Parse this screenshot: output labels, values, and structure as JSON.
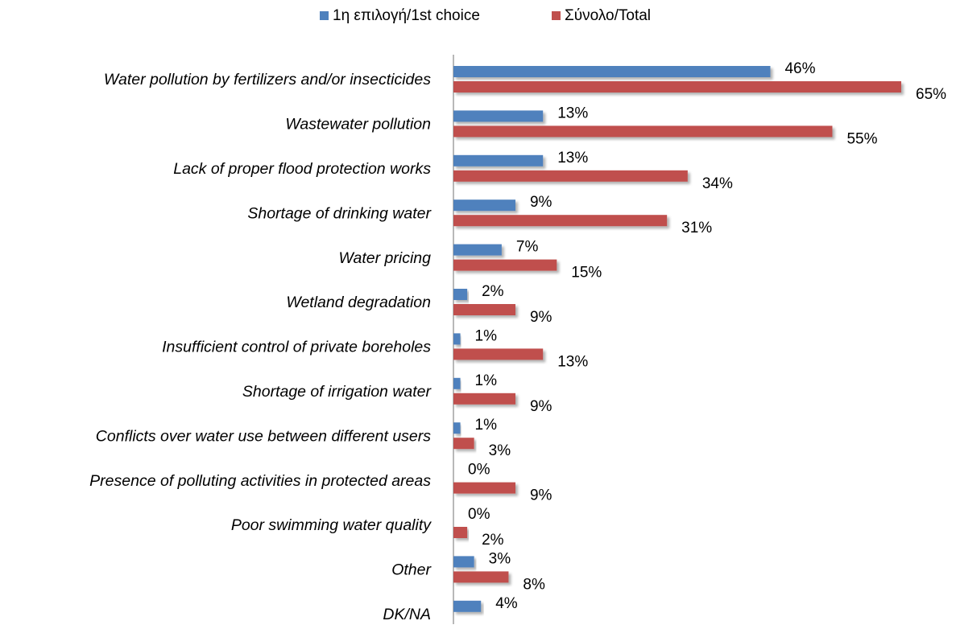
{
  "chart_data": {
    "type": "bar",
    "orientation": "horizontal",
    "categories": [
      "Water pollution by fertilizers and/or insecticides",
      "Wastewater pollution",
      "Lack of proper flood protection works",
      "Shortage of drinking water",
      "Water pricing",
      "Wetland degradation",
      "Insufficient control of private boreholes",
      "Shortage of irrigation water",
      "Conflicts over water use between different users",
      "Presence of polluting activities in protected areas",
      "Poor swimming water quality",
      "Other",
      "DK/NA"
    ],
    "series": [
      {
        "name": "1η επιλογή/1st choice",
        "color": "#4f81bd",
        "values": [
          46,
          13,
          13,
          9,
          7,
          2,
          1,
          1,
          1,
          0,
          0,
          3,
          4
        ],
        "value_labels": [
          "46%",
          "13%",
          "13%",
          "9%",
          "7%",
          "2%",
          "1%",
          "1%",
          "1%",
          "0%",
          "0%",
          "3%",
          "4%"
        ]
      },
      {
        "name": "Σύνολο/Total",
        "color": "#c0504d",
        "values": [
          65,
          55,
          34,
          31,
          15,
          9,
          13,
          9,
          3,
          9,
          2,
          8,
          null
        ],
        "value_labels": [
          "65%",
          "55%",
          "34%",
          "31%",
          "15%",
          "9%",
          "13%",
          "9%",
          "3%",
          "9%",
          "2%",
          "8%",
          null
        ]
      }
    ],
    "legend": "top"
  }
}
